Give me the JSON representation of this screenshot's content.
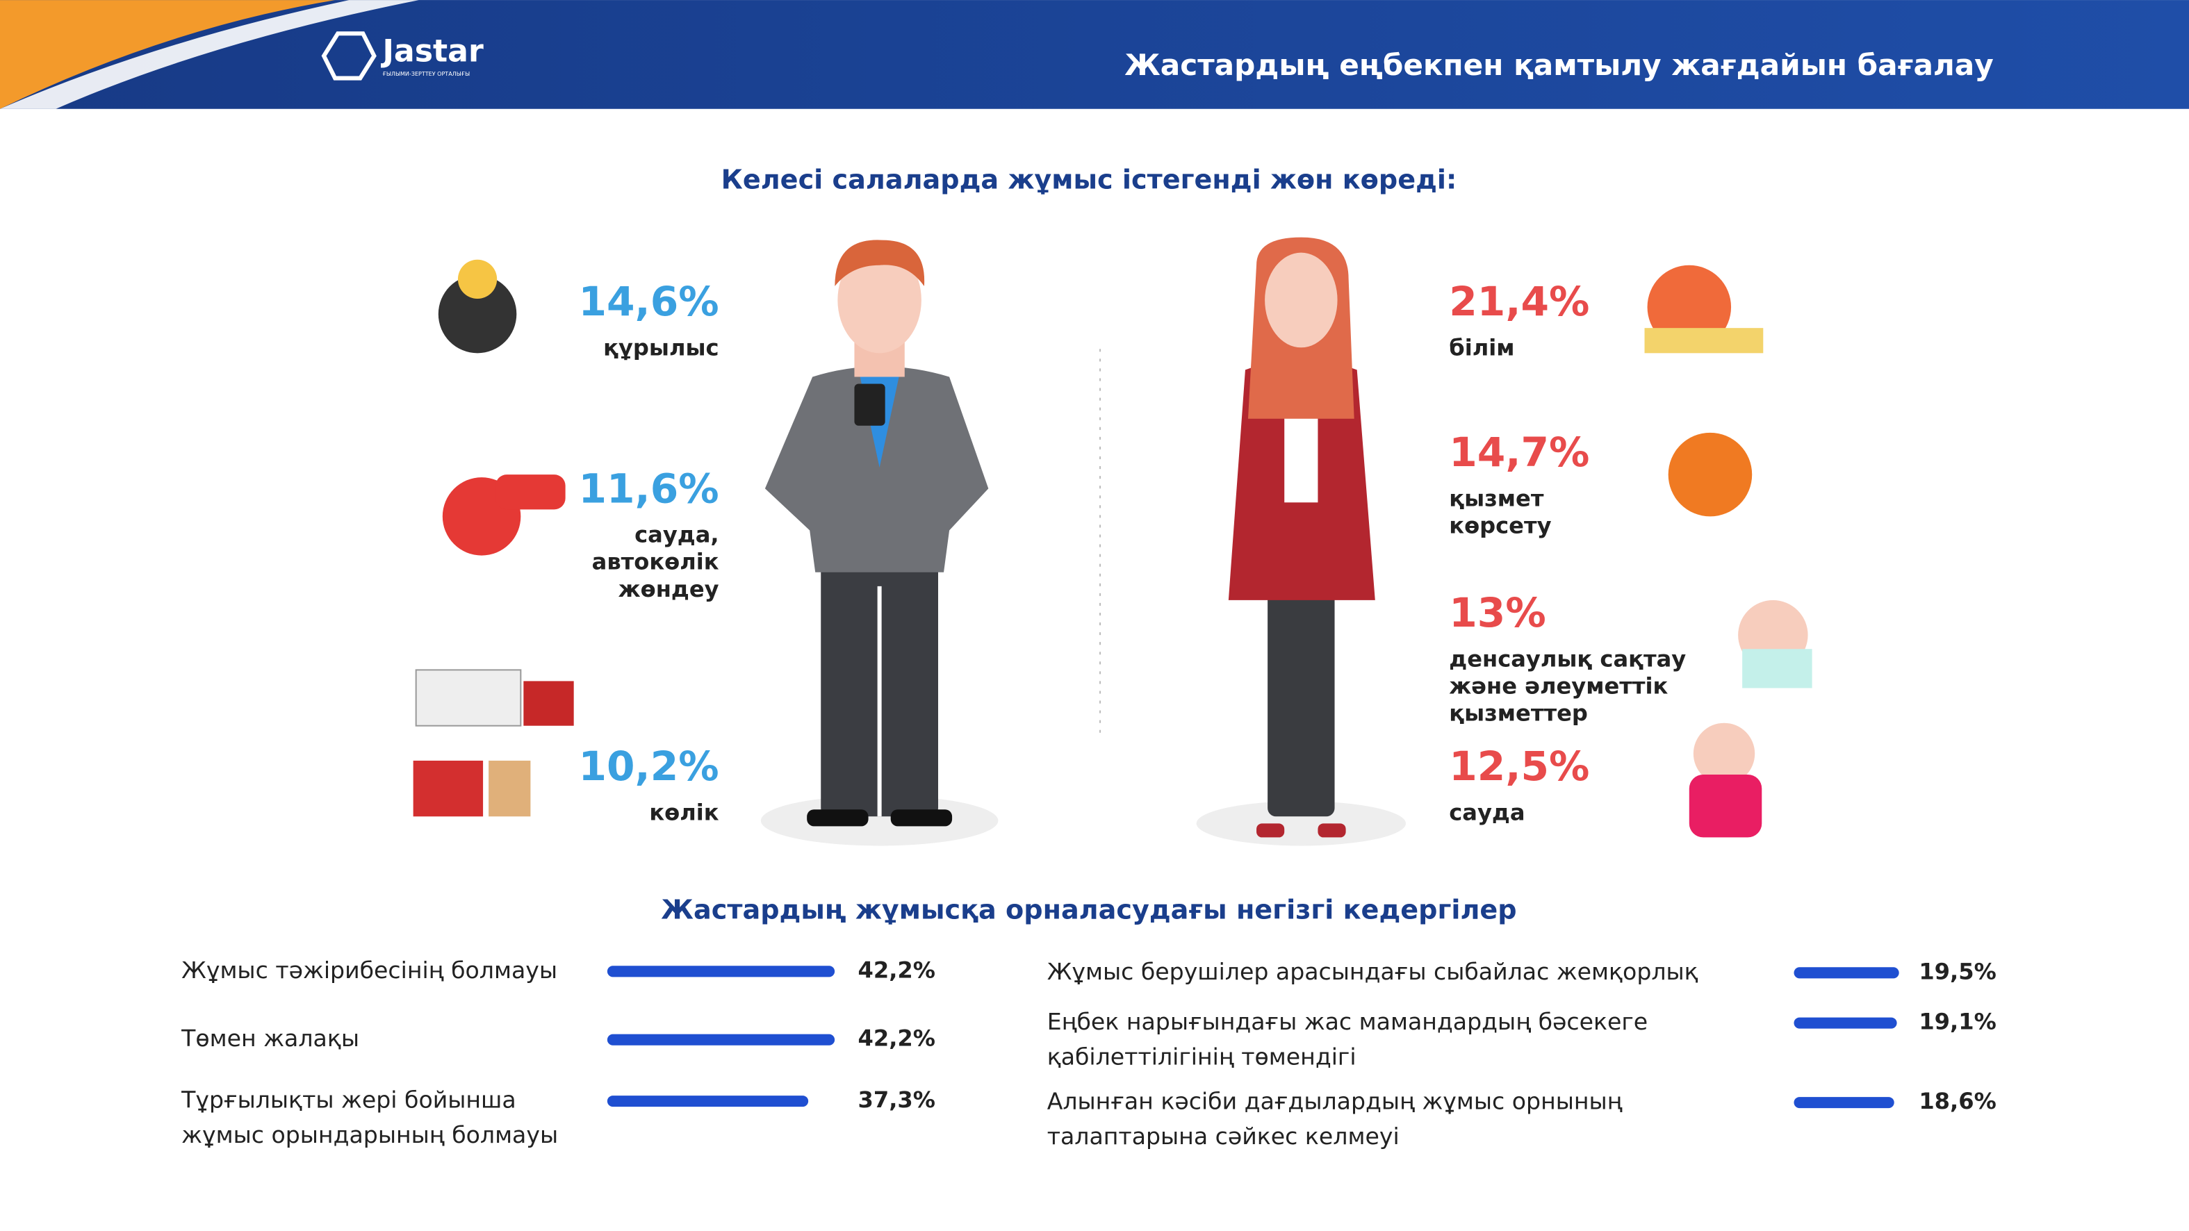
{
  "header": {
    "logo": "Jastar",
    "logo_subtitle": "ҒЫЛЫМИ-ЗЕРТТЕУ ОРТАЛЫҒЫ",
    "title": "Жастардың еңбекпен қамтылу жағдайын бағалау"
  },
  "sectors": {
    "title": "Келесі салаларда жұмыс істегенді жөн көреді:",
    "male": [
      {
        "label": "14,6%",
        "name": [
          "құрылыс"
        ]
      },
      {
        "label": "11,6%",
        "name": [
          "сауда,",
          "автокөлік",
          "жөндеу"
        ]
      },
      {
        "label": "10,2%",
        "name": [
          "көлік"
        ]
      }
    ],
    "female": [
      {
        "label": "21,4%",
        "name": [
          "білім"
        ]
      },
      {
        "label": "14,7%",
        "name": [
          "қызмет",
          "көрсету"
        ]
      },
      {
        "label": "13%",
        "name": [
          "денсаулық сақтау",
          "және әлеуметтік",
          "қызметтер"
        ]
      },
      {
        "label": "12,5%",
        "name": [
          "сауда"
        ]
      }
    ]
  },
  "barriers": {
    "title": "Жастардың жұмысқа орналасудағы негізгі кедергілер",
    "color": "#1f4fd1",
    "left": [
      {
        "name": [
          "Жұмыс тәжірибесінің болмауы"
        ],
        "value": 42.2,
        "label": "42,2%"
      },
      {
        "name": [
          "Төмен жалақы"
        ],
        "value": 42.2,
        "label": "42,2%"
      },
      {
        "name": [
          "Тұрғылықты жері бойынша",
          "жұмыс орындарының болмауы"
        ],
        "value": 37.3,
        "label": "37,3%"
      }
    ],
    "right": [
      {
        "name": [
          "Жұмыс берушілер арасындағы сыбайлас жемқорлық"
        ],
        "value": 19.5,
        "label": "19,5%"
      },
      {
        "name": [
          "Еңбек нарығындағы жас мамандардың бәсекеге",
          "қабілеттілігінің төмендігі"
        ],
        "value": 19.1,
        "label": "19,1%"
      },
      {
        "name": [
          "Алынған кәсіби дағдылардың жұмыс орнының",
          "талаптарына сәйкес келмеуі"
        ],
        "value": 18.6,
        "label": "18,6%"
      }
    ]
  }
}
